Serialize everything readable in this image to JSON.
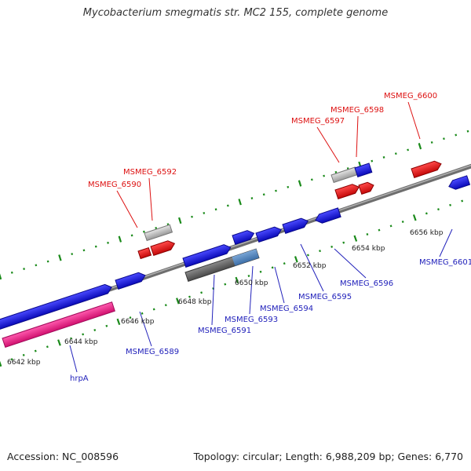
{
  "title": "Mycobacterium smegmatis str. MC2 155, complete genome",
  "footer": {
    "accession": "Accession: NC_008596",
    "stats": "Topology: circular; Length: 6,988,209 bp; Genes: 6,770"
  },
  "colors": {
    "forward_gene": "#1111dd",
    "reverse_gene": "#ee1111",
    "pseudo": "#c0c0c0",
    "hrpA": "#ee2288",
    "backbone": "#888888",
    "tick": "#1a8a1a",
    "forward_label": "#2222bb",
    "reverse_label": "#dd1111"
  },
  "scale_labels": [
    "6642 kbp",
    "6644 kbp",
    "6646 kbp",
    "6648 kbp",
    "6650 kbp",
    "6652 kbp",
    "6654 kbp",
    "6656 kbp"
  ],
  "forward_genes": [
    "hrpA",
    "MSMEG_6589",
    "MSMEG_6591",
    "MSMEG_6593",
    "MSMEG_6594",
    "MSMEG_6595",
    "MSMEG_6596",
    "MSMEG_6601"
  ],
  "reverse_genes": [
    "MSMEG_6590",
    "MSMEG_6592",
    "MSMEG_6597",
    "MSMEG_6598",
    "MSMEG_6600"
  ]
}
